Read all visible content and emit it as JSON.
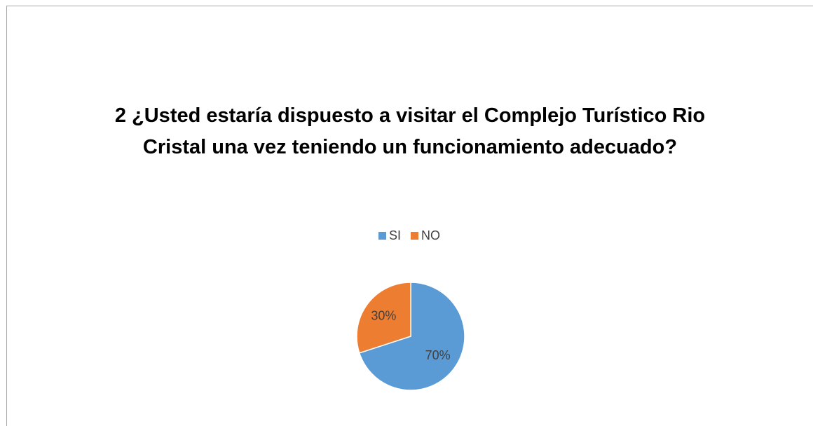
{
  "chart_data": {
    "type": "pie",
    "title": "2 ¿Usted estaría dispuesto a visitar el Complejo Turístico Rio Cristal una vez teniendo un funcionamiento adecuado?",
    "categories": [
      "SI",
      "NO"
    ],
    "values": [
      70,
      30
    ],
    "value_labels": [
      "70%",
      "30%"
    ],
    "colors": [
      "#5b9bd5",
      "#ed7d31"
    ],
    "legend": "top"
  }
}
